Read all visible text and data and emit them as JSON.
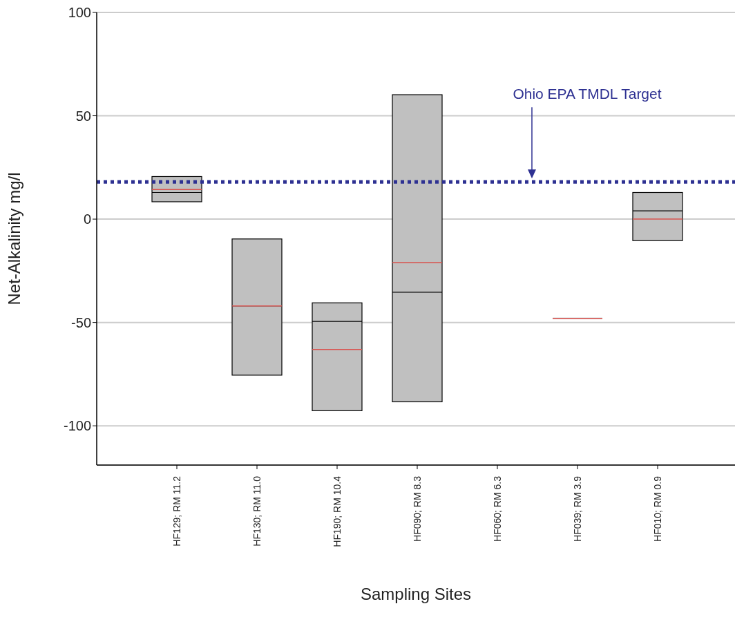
{
  "chart_data": {
    "type": "box",
    "xlabel": "Sampling Sites",
    "ylabel": "Net-Alkalinity mg/l",
    "categories": [
      "HF129; RM 11.2",
      "HF130; RM 11.0",
      "HF190; RM 10.4",
      "HF090; RM 8.3",
      "HF060; RM 6.3",
      "HF039; RM 3.9",
      "HF010; RM 0.9"
    ],
    "color": "#c0c0c0",
    "boxes": [
      {
        "low": 8.4,
        "q1": 8.4,
        "median": 12.9,
        "q3": 20.6,
        "high": 20.6,
        "mean": 14.3
      },
      {
        "low": -75.5,
        "q1": -75.5,
        "median": -42,
        "q3": -9.6,
        "high": -9.6,
        "mean": -42
      },
      {
        "low": -92.7,
        "q1": -92.7,
        "median": -49.5,
        "q3": -40.5,
        "high": -40.5,
        "mean": -63.1
      },
      {
        "low": -88.4,
        "q1": -88.4,
        "median": -35.4,
        "q3": 60.2,
        "high": 60.2,
        "mean": -21
      },
      null,
      {
        "low": -48,
        "q1": -48,
        "median": -48,
        "q3": -48,
        "high": -48,
        "mean": -48
      },
      {
        "low": -10.4,
        "q1": -10.4,
        "median": 4,
        "q3": 12.9,
        "high": 12.9,
        "mean": 0
      }
    ],
    "ylim": [
      -119,
      100
    ],
    "yticks": [
      -100,
      -50,
      0,
      50,
      100
    ],
    "grid": "y",
    "ref_lines": [
      {
        "axis": "y",
        "value": 18,
        "label": "Ohio EPA TMDL Target",
        "color": "#2e3192",
        "line_style": "dotted"
      }
    ]
  }
}
